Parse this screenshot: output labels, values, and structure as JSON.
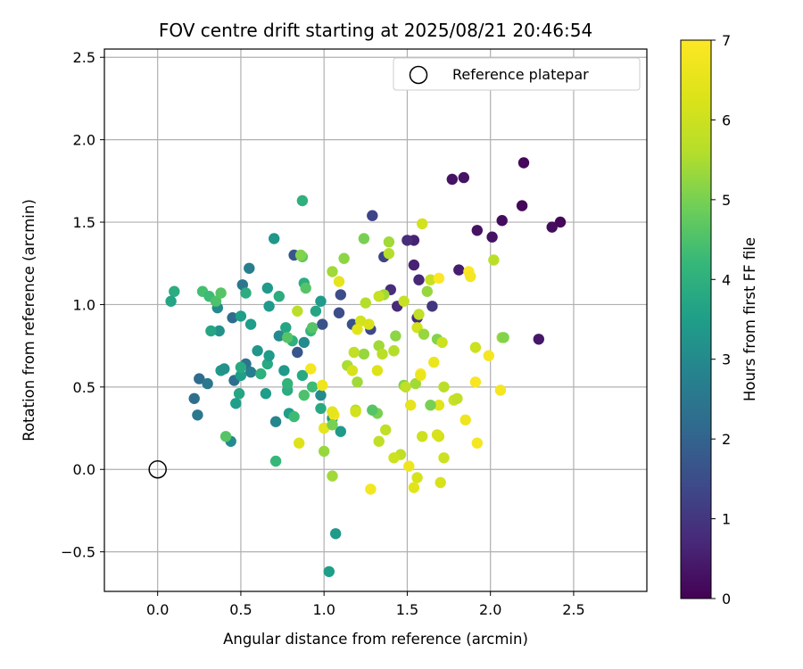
{
  "chart_data": {
    "type": "scatter",
    "title": "FOV centre drift starting at 2025/08/21 20:46:54",
    "xlabel": "Angular distance from reference (arcmin)",
    "ylabel": "Rotation from reference (arcmin)",
    "xlim": [
      -0.32,
      2.94
    ],
    "ylim": [
      -0.74,
      2.55
    ],
    "xticks": [
      0.0,
      0.5,
      1.0,
      1.5,
      2.0,
      2.5
    ],
    "xtick_labels": [
      "0.0",
      "0.5",
      "1.0",
      "1.5",
      "2.0",
      "2.5"
    ],
    "yticks": [
      -0.5,
      0.0,
      0.5,
      1.0,
      1.5,
      2.0,
      2.5
    ],
    "ytick_labels": [
      "−0.5",
      "0.0",
      "0.5",
      "1.0",
      "1.5",
      "2.0",
      "2.5"
    ],
    "grid": true,
    "legend_placement": "top-right",
    "legend": [
      {
        "label": "Reference platepar",
        "marker": "open-circle"
      }
    ],
    "reference_point": {
      "x": 0.0,
      "y": 0.0
    },
    "colorbar": {
      "label": "Hours from first FF file",
      "range": [
        0,
        7
      ],
      "ticks": [
        0,
        1,
        2,
        3,
        4,
        5,
        6,
        7
      ],
      "tick_labels": [
        "0",
        "1",
        "2",
        "3",
        "4",
        "5",
        "6",
        "7"
      ],
      "colormap": "viridis"
    },
    "points": [
      [
        2.2,
        1.86,
        0.1
      ],
      [
        1.77,
        1.76,
        0.3
      ],
      [
        1.84,
        1.77,
        0.3
      ],
      [
        2.42,
        1.5,
        0.1
      ],
      [
        2.37,
        1.47,
        0.2
      ],
      [
        2.19,
        1.6,
        0.1
      ],
      [
        2.07,
        1.51,
        0.2
      ],
      [
        2.01,
        1.41,
        0.3
      ],
      [
        1.92,
        1.45,
        0.3
      ],
      [
        2.29,
        0.79,
        0.4
      ],
      [
        1.81,
        1.21,
        0.5
      ],
      [
        1.54,
        1.39,
        0.6
      ],
      [
        1.5,
        1.39,
        0.8
      ],
      [
        1.54,
        1.24,
        0.6
      ],
      [
        1.57,
        1.15,
        0.7
      ],
      [
        1.65,
        0.99,
        1.0
      ],
      [
        1.56,
        0.92,
        0.8
      ],
      [
        1.44,
        0.99,
        0.7
      ],
      [
        1.4,
        1.09,
        0.8
      ],
      [
        1.36,
        1.29,
        1.3
      ],
      [
        1.29,
        1.54,
        1.3
      ],
      [
        1.1,
        1.06,
        1.5
      ],
      [
        1.09,
        0.95,
        1.5
      ],
      [
        1.17,
        0.88,
        1.6
      ],
      [
        1.28,
        0.85,
        1.4
      ],
      [
        0.99,
        0.88,
        1.6
      ],
      [
        0.84,
        0.71,
        1.7
      ],
      [
        0.82,
        1.3,
        1.7
      ],
      [
        0.88,
        0.77,
        3.0
      ],
      [
        0.73,
        0.81,
        3.0
      ],
      [
        0.55,
        1.22,
        2.7
      ],
      [
        0.51,
        1.12,
        2.5
      ],
      [
        0.45,
        0.92,
        2.2
      ],
      [
        0.46,
        0.54,
        2.3
      ],
      [
        0.53,
        0.64,
        2.4
      ],
      [
        0.56,
        0.59,
        2.7
      ],
      [
        0.22,
        0.43,
        2.3
      ],
      [
        0.24,
        0.33,
        2.5
      ],
      [
        0.25,
        0.55,
        2.2
      ],
      [
        0.3,
        0.52,
        2.5
      ],
      [
        0.36,
        0.98,
        3.0
      ],
      [
        0.37,
        0.84,
        3.2
      ],
      [
        0.38,
        0.6,
        3.4
      ],
      [
        0.4,
        0.61,
        3.2
      ],
      [
        0.44,
        0.17,
        3.0
      ],
      [
        0.47,
        0.4,
        3.5
      ],
      [
        0.49,
        0.46,
        3.7
      ],
      [
        0.5,
        0.57,
        3.5
      ],
      [
        0.5,
        0.62,
        3.8
      ],
      [
        0.5,
        0.93,
        3.5
      ],
      [
        0.53,
        1.07,
        3.9
      ],
      [
        0.56,
        0.88,
        3.5
      ],
      [
        0.6,
        0.72,
        3.3
      ],
      [
        0.62,
        0.58,
        4.0
      ],
      [
        0.65,
        0.46,
        3.5
      ],
      [
        0.66,
        0.64,
        3.8
      ],
      [
        0.67,
        0.69,
        3.4
      ],
      [
        0.67,
        0.99,
        3.4
      ],
      [
        0.66,
        1.1,
        3.4
      ],
      [
        0.7,
        1.4,
        3.3
      ],
      [
        0.71,
        0.29,
        2.9
      ],
      [
        0.73,
        1.05,
        3.9
      ],
      [
        0.76,
        0.6,
        3.4
      ],
      [
        0.77,
        0.86,
        3.7
      ],
      [
        0.78,
        0.48,
        3.9
      ],
      [
        0.78,
        0.52,
        4.1
      ],
      [
        0.79,
        0.34,
        3.5
      ],
      [
        0.81,
        0.78,
        4.0
      ],
      [
        0.82,
        0.32,
        4.3
      ],
      [
        0.87,
        0.57,
        3.8
      ],
      [
        0.88,
        0.45,
        4.5
      ],
      [
        0.88,
        1.13,
        3.9
      ],
      [
        0.89,
        1.1,
        4.6
      ],
      [
        0.92,
        0.84,
        4.2
      ],
      [
        0.93,
        0.5,
        4.3
      ],
      [
        0.95,
        0.96,
        3.7
      ],
      [
        0.98,
        1.02,
        3.4
      ],
      [
        0.98,
        0.37,
        3.8
      ],
      [
        0.98,
        0.45,
        3.0
      ],
      [
        1.05,
        0.31,
        3.4
      ],
      [
        1.1,
        0.23,
        3.4
      ],
      [
        0.87,
        1.63,
        4.0
      ],
      [
        1.07,
        -0.39,
        3.4
      ],
      [
        1.03,
        -0.62,
        3.5
      ],
      [
        0.71,
        0.05,
        4.2
      ],
      [
        0.41,
        0.2,
        4.6
      ],
      [
        0.32,
        0.84,
        3.7
      ],
      [
        0.27,
        1.08,
        4.4
      ],
      [
        0.31,
        1.05,
        4.3
      ],
      [
        0.35,
        1.02,
        4.5
      ],
      [
        0.38,
        1.07,
        4.6
      ],
      [
        0.1,
        1.08,
        3.9
      ],
      [
        0.08,
        1.02,
        3.7
      ],
      [
        0.87,
        1.29,
        4.7
      ],
      [
        0.86,
        1.3,
        5.1
      ],
      [
        1.05,
        1.2,
        5.4
      ],
      [
        1.12,
        1.28,
        5.2
      ],
      [
        1.24,
        1.4,
        5.0
      ],
      [
        1.39,
        1.38,
        5.4
      ],
      [
        1.39,
        1.31,
        5.6
      ],
      [
        1.36,
        1.06,
        5.4
      ],
      [
        1.33,
        1.05,
        5.9
      ],
      [
        1.25,
        1.01,
        5.6
      ],
      [
        1.43,
        0.81,
        5.2
      ],
      [
        1.33,
        0.75,
        5.4
      ],
      [
        1.35,
        0.7,
        5.7
      ],
      [
        1.24,
        0.7,
        5.3
      ],
      [
        1.18,
        0.71,
        5.8
      ],
      [
        1.22,
        0.9,
        6.1
      ],
      [
        1.27,
        0.88,
        6.2
      ],
      [
        1.2,
        0.85,
        6.4
      ],
      [
        1.14,
        0.63,
        5.5
      ],
      [
        1.2,
        0.53,
        5.4
      ],
      [
        1.17,
        0.6,
        6.2
      ],
      [
        1.19,
        0.36,
        5.6
      ],
      [
        1.32,
        0.34,
        5.0
      ],
      [
        1.32,
        0.6,
        6.3
      ],
      [
        1.29,
        0.36,
        4.6
      ],
      [
        1.42,
        0.72,
        5.7
      ],
      [
        1.48,
        1.02,
        5.9
      ],
      [
        1.55,
        0.52,
        5.4
      ],
      [
        1.48,
        0.51,
        5.1
      ],
      [
        1.49,
        0.5,
        5.8
      ],
      [
        1.56,
        0.86,
        6.1
      ],
      [
        1.57,
        0.94,
        5.8
      ],
      [
        1.6,
        0.82,
        5.3
      ],
      [
        1.62,
        1.08,
        5.3
      ],
      [
        1.64,
        1.15,
        5.9
      ],
      [
        1.59,
        1.49,
        6.1
      ],
      [
        1.68,
        0.79,
        5.1
      ],
      [
        1.71,
        0.77,
        6.0
      ],
      [
        1.72,
        0.5,
        5.7
      ],
      [
        1.78,
        0.42,
        6.0
      ],
      [
        1.8,
        0.43,
        5.8
      ],
      [
        1.91,
        0.74,
        6.0
      ],
      [
        2.02,
        1.27,
        5.7
      ],
      [
        2.07,
        0.8,
        5.4
      ],
      [
        2.08,
        0.8,
        5.1
      ],
      [
        1.99,
        0.69,
        6.8
      ],
      [
        1.91,
        0.53,
        6.9
      ],
      [
        1.87,
        1.2,
        7.0
      ],
      [
        1.88,
        1.17,
        6.8
      ],
      [
        1.69,
        1.16,
        7.0
      ],
      [
        1.66,
        0.65,
        6.6
      ],
      [
        1.69,
        0.39,
        6.4
      ],
      [
        1.64,
        0.39,
        5.0
      ],
      [
        1.58,
        0.58,
        7.0
      ],
      [
        1.59,
        0.2,
        6.0
      ],
      [
        1.51,
        0.02,
        6.7
      ],
      [
        1.56,
        -0.05,
        6.2
      ],
      [
        1.54,
        -0.11,
        6.4
      ],
      [
        1.46,
        0.09,
        5.8
      ],
      [
        1.42,
        0.07,
        6.0
      ],
      [
        1.37,
        0.24,
        5.8
      ],
      [
        1.33,
        0.17,
        5.8
      ],
      [
        1.28,
        -0.12,
        6.8
      ],
      [
        1.19,
        0.35,
        6.1
      ],
      [
        1.06,
        0.33,
        6.7
      ],
      [
        1.05,
        0.35,
        6.5
      ],
      [
        1.0,
        0.25,
        6.5
      ],
      [
        0.99,
        0.51,
        6.7
      ],
      [
        0.92,
        0.61,
        6.8
      ],
      [
        0.85,
        0.16,
        6.3
      ],
      [
        1.0,
        0.11,
        5.3
      ],
      [
        1.05,
        -0.04,
        5.4
      ],
      [
        1.05,
        0.27,
        5.0
      ],
      [
        0.84,
        0.96,
        5.7
      ],
      [
        0.93,
        0.86,
        4.6
      ],
      [
        1.09,
        1.14,
        6.5
      ],
      [
        1.42,
        0.72,
        5.6
      ],
      [
        1.52,
        0.39,
        6.5
      ],
      [
        1.69,
        0.2,
        6.1
      ],
      [
        1.7,
        -0.08,
        6.2
      ],
      [
        1.72,
        0.07,
        6.0
      ],
      [
        1.85,
        0.3,
        6.7
      ],
      [
        1.92,
        0.16,
        6.8
      ],
      [
        2.06,
        0.48,
        6.8
      ],
      [
        1.68,
        0.21,
        6.2
      ],
      [
        1.58,
        0.57,
        6.6
      ],
      [
        0.78,
        0.8,
        4.6
      ]
    ]
  }
}
